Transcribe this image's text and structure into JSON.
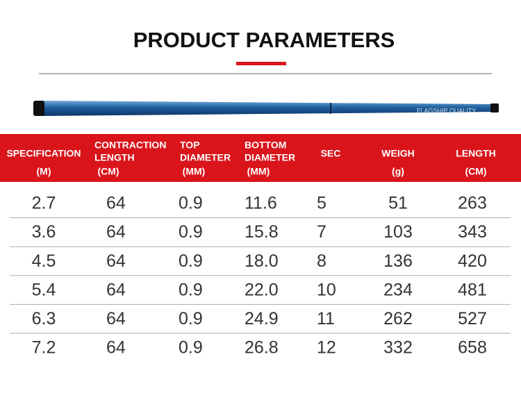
{
  "header": {
    "title": "PRODUCT PARAMETERS"
  },
  "rod": {
    "label": "FLAGSHIP QUALITY"
  },
  "table": {
    "columns": [
      {
        "lines": [
          "SPECIFICATION"
        ],
        "unit": "(M)"
      },
      {
        "lines": [
          "CONTRACTION",
          "LENGTH"
        ],
        "unit": "(CM)"
      },
      {
        "lines": [
          "TOP",
          "DIAMETER"
        ],
        "unit": "(MM)"
      },
      {
        "lines": [
          "BOTTOM",
          "DIAMETER"
        ],
        "unit": "(MM)"
      },
      {
        "lines": [
          "SEC"
        ]
      },
      {
        "lines": [
          "WEIGH"
        ],
        "unit": "(g)"
      },
      {
        "lines": [
          "LENGTH"
        ],
        "unit": "(CM)"
      }
    ],
    "rows": [
      [
        "2.7",
        "64",
        "0.9",
        "11.6",
        "5",
        "51",
        "263"
      ],
      [
        "3.6",
        "64",
        "0.9",
        "15.8",
        "7",
        "103",
        "343"
      ],
      [
        "4.5",
        "64",
        "0.9",
        "18.0",
        "8",
        "136",
        "420"
      ],
      [
        "5.4",
        "64",
        "0.9",
        "22.0",
        "10",
        "234",
        "481"
      ],
      [
        "6.3",
        "64",
        "0.9",
        "24.9",
        "11",
        "262",
        "527"
      ],
      [
        "7.2",
        "64",
        "0.9",
        "26.8",
        "12",
        "332",
        "658"
      ]
    ]
  }
}
